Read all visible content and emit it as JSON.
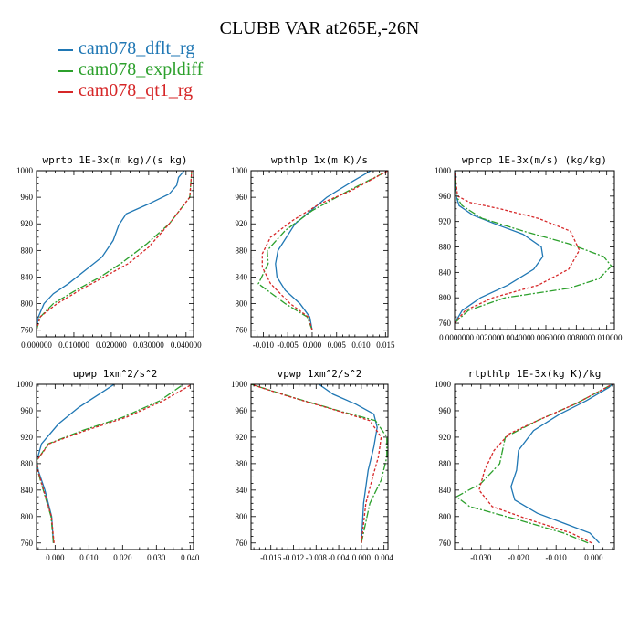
{
  "title": "CLUBB VAR at265E,-26N",
  "legend": [
    {
      "name": "cam078_dflt_rg",
      "color": "#1f77b4",
      "dash": "none"
    },
    {
      "name": "cam078_expldiff",
      "color": "#2ca02c",
      "dash": "8,2,2,2"
    },
    {
      "name": "cam078_qt1_rg",
      "color": "#d62728",
      "dash": "3,2"
    }
  ],
  "chart_data": [
    {
      "type": "line",
      "title": "wprtp  1E-3x(m kg)/(s kg)",
      "xlim": [
        0.0,
        0.042
      ],
      "ylim": [
        1000,
        750
      ],
      "xticks": [
        0.0,
        0.01,
        0.02,
        0.03,
        0.04
      ],
      "xtick_labels": [
        "0.000000",
        "0.010000",
        "0.020000",
        "0.030000",
        "0.040000"
      ],
      "yticks": [
        760,
        800,
        840,
        880,
        920,
        960,
        1000
      ],
      "series": [
        {
          "name": "cam078_dflt_rg",
          "x": [
            0.0,
            0.0005,
            0.002,
            0.0045,
            0.0085,
            0.013,
            0.0175,
            0.0205,
            0.022,
            0.024,
            0.03,
            0.0355,
            0.0375,
            0.038,
            0.0395
          ],
          "y": [
            760,
            780,
            800,
            815,
            830,
            850,
            870,
            895,
            918,
            935,
            950,
            965,
            978,
            990,
            1000
          ]
        },
        {
          "name": "cam078_expldiff",
          "x": [
            0.0,
            0.001,
            0.0045,
            0.0105,
            0.017,
            0.0225,
            0.0295,
            0.0355,
            0.041,
            0.0415
          ],
          "y": [
            760,
            780,
            800,
            820,
            840,
            860,
            890,
            920,
            960,
            1000
          ]
        },
        {
          "name": "cam078_qt1_rg",
          "x": [
            0.0,
            0.0009,
            0.0055,
            0.0115,
            0.018,
            0.0245,
            0.03,
            0.0355,
            0.041,
            0.0415
          ],
          "y": [
            760,
            780,
            800,
            820,
            840,
            860,
            885,
            920,
            960,
            1000
          ]
        }
      ]
    },
    {
      "type": "line",
      "title": "wpthlp  1x(m K)/s",
      "xlim": [
        -0.0125,
        0.0155
      ],
      "ylim": [
        1000,
        750
      ],
      "xticks": [
        -0.01,
        -0.005,
        0.0,
        0.005,
        0.01,
        0.015
      ],
      "xtick_labels": [
        "-0.010",
        "-0.005",
        "0.000",
        "0.005",
        "0.010",
        "0.015"
      ],
      "yticks": [
        760,
        800,
        840,
        880,
        920,
        960,
        1000
      ],
      "series": [
        {
          "name": "cam078_dflt_rg",
          "x": [
            0.0,
            -0.0005,
            -0.0025,
            -0.0055,
            -0.0072,
            -0.0075,
            -0.007,
            -0.0035,
            0.003,
            0.0085,
            0.012
          ],
          "y": [
            760,
            780,
            800,
            820,
            840,
            860,
            880,
            920,
            960,
            985,
            1000
          ]
        },
        {
          "name": "cam078_expldiff",
          "x": [
            0.0,
            -0.001,
            -0.0055,
            -0.011,
            -0.009,
            -0.0092,
            -0.0055,
            0.0,
            0.0075,
            0.0155
          ],
          "y": [
            760,
            780,
            800,
            830,
            860,
            880,
            910,
            940,
            970,
            1000
          ]
        },
        {
          "name": "cam078_qt1_rg",
          "x": [
            0.0,
            -0.0008,
            -0.0045,
            -0.0085,
            -0.0102,
            -0.0102,
            -0.0085,
            -0.004,
            0.0015,
            0.008,
            0.0155
          ],
          "y": [
            760,
            780,
            800,
            830,
            855,
            875,
            900,
            925,
            950,
            970,
            1000
          ]
        }
      ]
    },
    {
      "type": "line",
      "title": "wprcp  1E-3x(m/s) (kg/kg)",
      "xlim": [
        0.0,
        0.0105
      ],
      "ylim": [
        1000,
        750
      ],
      "xticks": [
        0.0,
        0.002,
        0.004,
        0.006,
        0.008,
        0.01
      ],
      "xtick_labels": [
        "0.000000",
        "0.002000",
        "0.004000",
        "0.006000",
        "0.008000",
        "0.010000"
      ],
      "yticks": [
        760,
        800,
        840,
        880,
        920,
        960,
        1000
      ],
      "series": [
        {
          "name": "cam078_dflt_rg",
          "x": [
            0.0,
            0.0005,
            0.0017,
            0.0035,
            0.0052,
            0.0058,
            0.0057,
            0.0045,
            0.0028,
            0.0012,
            0.0003,
            0.0001,
            0.0
          ],
          "y": [
            760,
            780,
            800,
            820,
            845,
            865,
            880,
            900,
            915,
            930,
            945,
            960,
            1000
          ]
        },
        {
          "name": "cam078_expldiff",
          "x": [
            0.0,
            0.0009,
            0.0033,
            0.0075,
            0.0095,
            0.0103,
            0.0098,
            0.0075,
            0.0045,
            0.0018,
            0.0005,
            0.0001,
            0.0
          ],
          "y": [
            760,
            780,
            800,
            815,
            830,
            850,
            865,
            885,
            905,
            925,
            945,
            960,
            1000
          ]
        },
        {
          "name": "cam078_qt1_rg",
          "x": [
            0.0,
            0.0007,
            0.0025,
            0.0055,
            0.0075,
            0.0082,
            0.0076,
            0.0055,
            0.003,
            0.001,
            0.0002,
            0.0
          ],
          "y": [
            760,
            780,
            800,
            820,
            845,
            875,
            905,
            925,
            940,
            950,
            960,
            1000
          ]
        }
      ]
    },
    {
      "type": "line",
      "title": "upwp  1xm^2/s^2",
      "xlim": [
        -0.0055,
        0.041
      ],
      "ylim": [
        1000,
        750
      ],
      "xticks": [
        0.0,
        0.01,
        0.02,
        0.03,
        0.04
      ],
      "xtick_labels": [
        "0.000",
        "0.010",
        "0.020",
        "0.030",
        "0.040"
      ],
      "yticks": [
        760,
        800,
        840,
        880,
        920,
        960,
        1000
      ],
      "series": [
        {
          "name": "cam078_dflt_rg",
          "x": [
            -0.0005,
            -0.001,
            -0.003,
            -0.005,
            -0.0054,
            -0.004,
            0.001,
            0.007,
            0.013,
            0.0175
          ],
          "y": [
            760,
            800,
            840,
            870,
            885,
            910,
            940,
            965,
            985,
            1000
          ]
        },
        {
          "name": "cam078_expldiff",
          "x": [
            -0.0005,
            -0.0012,
            -0.0035,
            -0.0052,
            -0.0054,
            -0.002,
            0.008,
            0.02,
            0.031,
            0.038
          ],
          "y": [
            760,
            800,
            840,
            870,
            885,
            910,
            930,
            950,
            975,
            1000
          ]
        },
        {
          "name": "cam078_qt1_rg",
          "x": [
            -0.0003,
            -0.0011,
            -0.0034,
            -0.0051,
            -0.0054,
            -0.0018,
            0.009,
            0.021,
            0.032,
            0.0405
          ],
          "y": [
            760,
            800,
            840,
            870,
            885,
            910,
            930,
            950,
            975,
            1000
          ]
        }
      ]
    },
    {
      "type": "line",
      "title": "vpwp  1xm^2/s^2",
      "xlim": [
        -0.0195,
        0.0047
      ],
      "ylim": [
        1000,
        750
      ],
      "xticks": [
        -0.016,
        -0.012,
        -0.008,
        -0.004,
        0.0,
        0.004
      ],
      "xtick_labels": [
        "-0.016",
        "-0.012",
        "-0.008",
        "-0.004",
        "0.000",
        "0.004"
      ],
      "yticks": [
        760,
        800,
        840,
        880,
        920,
        960,
        1000
      ],
      "series": [
        {
          "name": "cam078_dflt_rg",
          "x": [
            0.0,
            0.0004,
            0.0012,
            0.0022,
            0.0028,
            0.0022,
            -0.001,
            -0.005,
            -0.0075
          ],
          "y": [
            760,
            820,
            870,
            905,
            935,
            955,
            970,
            985,
            1000
          ]
        },
        {
          "name": "cam078_expldiff",
          "x": [
            0.0,
            0.0015,
            0.0035,
            0.0045,
            0.0045,
            0.0025,
            -0.004,
            -0.012,
            -0.0195
          ],
          "y": [
            760,
            820,
            855,
            890,
            920,
            945,
            960,
            980,
            1000
          ]
        },
        {
          "name": "cam078_qt1_rg",
          "x": [
            0.0,
            0.0008,
            0.002,
            0.003,
            0.0035,
            0.0015,
            -0.005,
            -0.013,
            -0.0195
          ],
          "y": [
            760,
            820,
            860,
            890,
            920,
            945,
            962,
            982,
            1000
          ]
        }
      ]
    },
    {
      "type": "line",
      "title": "rtpthlp  1E-3x(kg K)/kg",
      "xlim": [
        -0.037,
        0.0055
      ],
      "ylim": [
        1000,
        750
      ],
      "xticks": [
        -0.03,
        -0.02,
        -0.01,
        0.0
      ],
      "xtick_labels": [
        "-0.030",
        "-0.020",
        "-0.010",
        "0.000"
      ],
      "yticks": [
        760,
        800,
        840,
        880,
        920,
        960,
        1000
      ],
      "series": [
        {
          "name": "cam078_dflt_rg",
          "x": [
            0.0015,
            -0.001,
            -0.008,
            -0.015,
            -0.021,
            -0.022,
            -0.0205,
            -0.02,
            -0.016,
            -0.009,
            -0.002,
            0.004,
            0.005
          ],
          "y": [
            760,
            775,
            790,
            805,
            825,
            845,
            870,
            900,
            930,
            955,
            975,
            995,
            1000
          ]
        },
        {
          "name": "cam078_expldiff",
          "x": [
            -0.0015,
            -0.008,
            -0.02,
            -0.033,
            -0.0365,
            -0.03,
            -0.025,
            -0.0235,
            -0.015,
            -0.005,
            0.005
          ],
          "y": [
            760,
            775,
            795,
            815,
            830,
            850,
            880,
            920,
            945,
            970,
            1000
          ]
        },
        {
          "name": "cam078_qt1_rg",
          "x": [
            -0.0005,
            -0.006,
            -0.017,
            -0.027,
            -0.0305,
            -0.029,
            -0.0265,
            -0.0225,
            -0.015,
            -0.005,
            0.005
          ],
          "y": [
            760,
            775,
            795,
            815,
            840,
            870,
            900,
            925,
            945,
            970,
            1000
          ]
        }
      ]
    }
  ]
}
